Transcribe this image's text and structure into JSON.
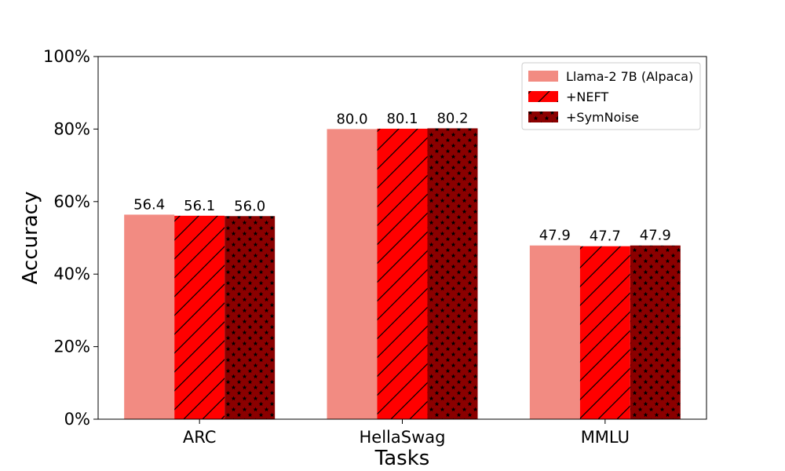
{
  "chart_data": {
    "type": "bar",
    "title": "",
    "xlabel": "Tasks",
    "ylabel": "Accuracy",
    "categories": [
      "ARC",
      "HellaSwag",
      "MMLU"
    ],
    "series": [
      {
        "name": "Llama-2 7B (Alpaca)",
        "values": [
          56.4,
          80.0,
          47.9
        ],
        "labels": [
          "56.4",
          "80.0",
          "47.9"
        ],
        "color": "#f28b82",
        "pattern": "solid"
      },
      {
        "name": "+NEFT",
        "values": [
          56.1,
          80.1,
          47.7
        ],
        "labels": [
          "56.1",
          "80.1",
          "47.7"
        ],
        "color": "#ff0000",
        "pattern": "hatch"
      },
      {
        "name": "+SymNoise",
        "values": [
          56.0,
          80.2,
          47.9
        ],
        "labels": [
          "56.0",
          "80.2",
          "47.9"
        ],
        "color": "#8b0000",
        "pattern": "stars"
      }
    ],
    "ylim": [
      0,
      100
    ],
    "yticks": [
      0,
      20,
      40,
      60,
      80,
      100
    ],
    "ytick_labels": [
      "0%",
      "20%",
      "40%",
      "60%",
      "80%",
      "100%"
    ],
    "legend_position": "top-right",
    "grid": false
  }
}
